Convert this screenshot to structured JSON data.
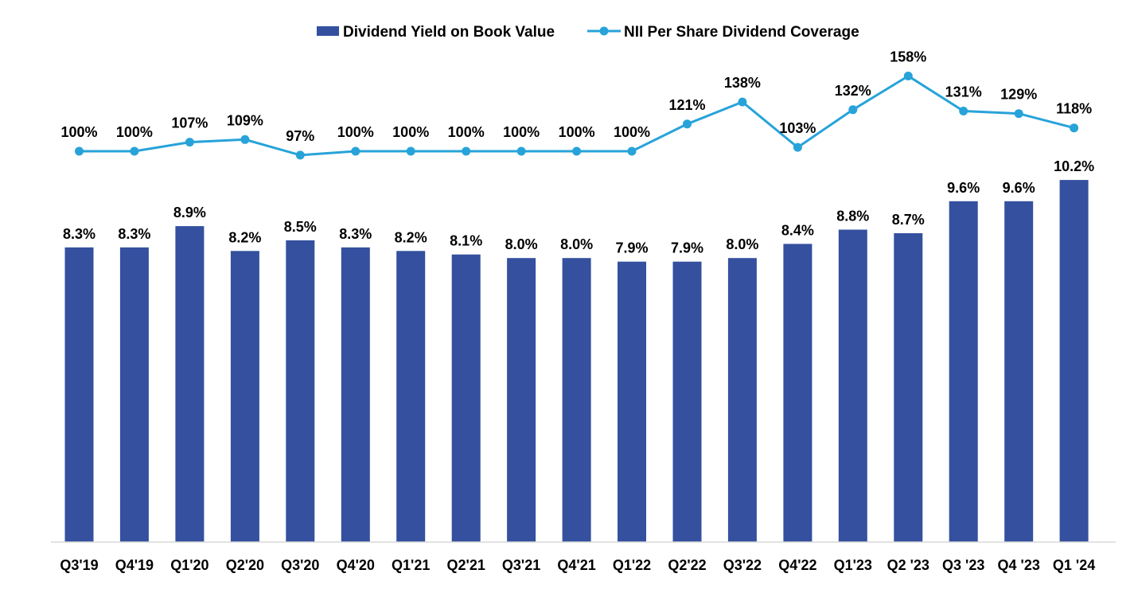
{
  "chart_data": {
    "type": "bar+line",
    "categories": [
      "Q3'19",
      "Q4'19",
      "Q1'20",
      "Q2'20",
      "Q3'20",
      "Q4'20",
      "Q1'21",
      "Q2'21",
      "Q3'21",
      "Q4'21",
      "Q1'22",
      "Q2'22",
      "Q3'22",
      "Q4'22",
      "Q1'23",
      "Q2 '23",
      "Q3 '23",
      "Q4 '23",
      "Q1 '24"
    ],
    "series": [
      {
        "name": "Dividend Yield on Book Value",
        "type": "bar",
        "color": "#34509e",
        "values": [
          8.3,
          8.3,
          8.9,
          8.2,
          8.5,
          8.3,
          8.2,
          8.1,
          8.0,
          8.0,
          7.9,
          7.9,
          8.0,
          8.4,
          8.8,
          8.7,
          9.6,
          9.6,
          10.2
        ],
        "labels": [
          "8.3%",
          "8.3%",
          "8.9%",
          "8.2%",
          "8.5%",
          "8.3%",
          "8.2%",
          "8.1%",
          "8.0%",
          "8.0%",
          "7.9%",
          "7.9%",
          "8.0%",
          "8.4%",
          "8.8%",
          "8.7%",
          "9.6%",
          "9.6%",
          "10.2%"
        ]
      },
      {
        "name": "NII Per Share Dividend Coverage",
        "type": "line",
        "color": "#27a3d9",
        "values": [
          100,
          100,
          107,
          109,
          97,
          100,
          100,
          100,
          100,
          100,
          100,
          121,
          138,
          103,
          132,
          158,
          131,
          129,
          118
        ],
        "labels": [
          "100%",
          "100%",
          "107%",
          "109%",
          "97%",
          "100%",
          "100%",
          "100%",
          "100%",
          "100%",
          "100%",
          "121%",
          "138%",
          "103%",
          "132%",
          "158%",
          "131%",
          "129%",
          "118%"
        ]
      }
    ],
    "legend": "top-center",
    "grid": false
  }
}
